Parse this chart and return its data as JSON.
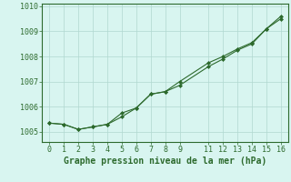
{
  "line1_x": [
    0,
    1,
    2,
    3,
    4,
    5,
    6,
    7,
    8,
    9,
    11,
    12,
    13,
    14,
    15,
    16
  ],
  "line1_y": [
    1005.35,
    1005.3,
    1005.1,
    1005.2,
    1005.3,
    1005.75,
    1005.95,
    1006.5,
    1006.6,
    1006.85,
    1007.6,
    1007.9,
    1008.25,
    1008.5,
    1009.1,
    1009.5
  ],
  "line2_x": [
    0,
    1,
    2,
    3,
    4,
    5,
    6,
    7,
    8,
    9,
    11,
    12,
    13,
    14,
    15,
    16
  ],
  "line2_y": [
    1005.35,
    1005.3,
    1005.1,
    1005.2,
    1005.3,
    1005.6,
    1005.95,
    1006.5,
    1006.6,
    1007.0,
    1007.75,
    1008.0,
    1008.3,
    1008.55,
    1009.1,
    1009.6
  ],
  "line_color": "#2d6a2d",
  "background_color": "#d8f5f0",
  "grid_color": "#b0d8d0",
  "xlabel": "Graphe pression niveau de la mer (hPa)",
  "xlabel_fontsize": 7,
  "xticks": [
    0,
    1,
    2,
    3,
    4,
    5,
    6,
    7,
    8,
    9,
    11,
    12,
    13,
    14,
    15,
    16
  ],
  "ylim": [
    1004.6,
    1010.1
  ],
  "yticks": [
    1005,
    1006,
    1007,
    1008,
    1009,
    1010
  ],
  "xlim": [
    -0.5,
    16.5
  ],
  "tick_fontsize": 6,
  "marker": "D",
  "markersize": 2.0,
  "linewidth": 0.8
}
